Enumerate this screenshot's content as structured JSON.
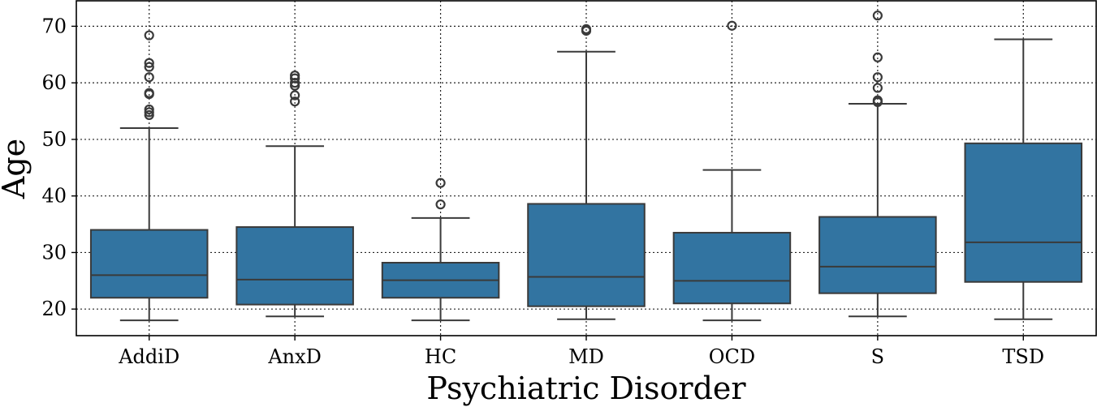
{
  "chart_data": {
    "type": "box",
    "xlabel": "Psychiatric Disorder",
    "ylabel": "Age",
    "ylim": [
      15.3,
      74.5
    ],
    "yticks": [
      20,
      30,
      40,
      50,
      60,
      70
    ],
    "grid": true,
    "box_color": "#3274a1",
    "line_color": "#3a3a3a",
    "categories": [
      "AddiD",
      "AnxD",
      "HC",
      "MD",
      "OCD",
      "S",
      "TSD"
    ],
    "boxes": [
      {
        "category": "AddiD",
        "whisker_low": 18,
        "q1": 22,
        "median": 26,
        "q3": 34,
        "whisker_high": 52,
        "outliers": [
          54.3,
          54.8,
          55.3,
          58,
          58.2,
          61,
          62.8,
          63.5,
          68.4
        ]
      },
      {
        "category": "AnxD",
        "whisker_low": 18.7,
        "q1": 20.8,
        "median": 25.2,
        "q3": 34.5,
        "whisker_high": 48.8,
        "outliers": [
          56.7,
          57.8,
          59.5,
          60,
          60.8,
          61.3
        ]
      },
      {
        "category": "HC",
        "whisker_low": 18,
        "q1": 22,
        "median": 25.1,
        "q3": 28.2,
        "whisker_high": 36.1,
        "outliers": [
          38.5,
          42.3
        ]
      },
      {
        "category": "MD",
        "whisker_low": 18.2,
        "q1": 20.5,
        "median": 25.7,
        "q3": 38.6,
        "whisker_high": 65.5,
        "outliers": [
          69.2,
          69.5
        ]
      },
      {
        "category": "OCD",
        "whisker_low": 18,
        "q1": 21,
        "median": 25,
        "q3": 33.5,
        "whisker_high": 44.6,
        "outliers": [
          70.1
        ]
      },
      {
        "category": "S",
        "whisker_low": 18.7,
        "q1": 22.8,
        "median": 27.5,
        "q3": 36.3,
        "whisker_high": 56.3,
        "outliers": [
          56.6,
          56.9,
          59.1,
          61,
          64.5,
          71.9
        ]
      },
      {
        "category": "TSD",
        "whisker_low": 18.2,
        "q1": 24.8,
        "median": 31.8,
        "q3": 49.3,
        "whisker_high": 67.7,
        "outliers": []
      }
    ]
  }
}
